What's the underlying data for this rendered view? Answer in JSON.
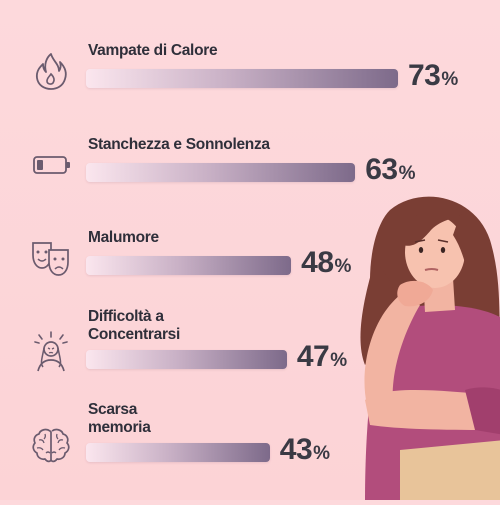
{
  "chart_data": {
    "type": "bar",
    "orientation": "horizontal",
    "categories": [
      "Vampate di Calore",
      "Stanchezza e Sonnolenza",
      "Malumore",
      "Difficoltà a\nConcentrarsi",
      "Scarsa\nmemoria"
    ],
    "values": [
      73,
      63,
      48,
      47,
      43
    ],
    "value_suffix": "%",
    "icons": [
      "flame-icon",
      "battery-low-icon",
      "theater-masks-icon",
      "stressed-person-icon",
      "brain-icon"
    ],
    "colors": {
      "background": "#fcd5d8",
      "bar_start": "#fbe6ee",
      "bar_end": "#7d6a8a",
      "text": "#2f2f3a",
      "icon": "#6b5b6e"
    }
  }
}
